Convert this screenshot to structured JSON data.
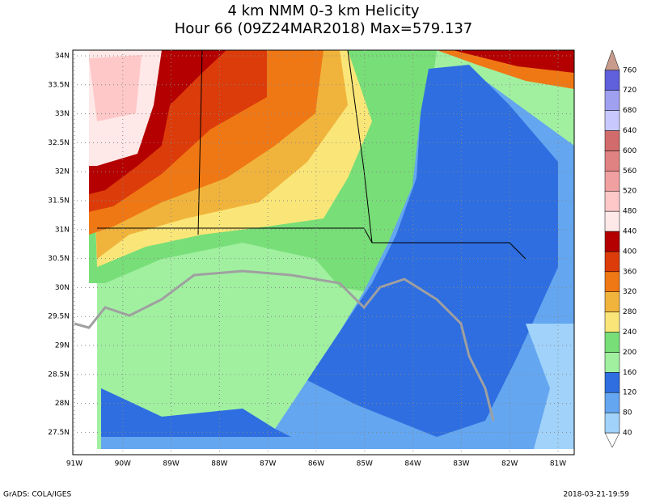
{
  "header": {
    "title": "4 km NMM 0-3 km Helicity",
    "subtitle": "Hour 66 (09Z24MAR2018) Max=579.137"
  },
  "map": {
    "lat_labels": [
      "34N",
      "33.5N",
      "33N",
      "32.5N",
      "32N",
      "31.5N",
      "31N",
      "30.5N",
      "30N",
      "29.5N",
      "29N",
      "28.5N",
      "28N",
      "27.5N"
    ],
    "lon_labels": [
      "91W",
      "90W",
      "89W",
      "88W",
      "87W",
      "86W",
      "85W",
      "84W",
      "83W",
      "82W",
      "81W"
    ]
  },
  "colorbar": {
    "labels": [
      40,
      80,
      120,
      160,
      200,
      240,
      280,
      320,
      360,
      400,
      440,
      480,
      520,
      560,
      600,
      640,
      680,
      720,
      760
    ],
    "colors": [
      "#ffffff",
      "#a0d2fa",
      "#64a6f0",
      "#2e6ee0",
      "#a0f0a0",
      "#78de78",
      "#fae678",
      "#f0b43c",
      "#f07814",
      "#dc3c0a",
      "#b40000",
      "#ffe8e8",
      "#ffc8c8",
      "#f0a0a0",
      "#e08282",
      "#d26c6c",
      "#c8c8ff",
      "#a0a0f0",
      "#6060dc",
      "#c89c8c"
    ]
  },
  "footer": {
    "left": "GrADS: COLA/IGES",
    "right": "2018-03-21-19:59"
  }
}
